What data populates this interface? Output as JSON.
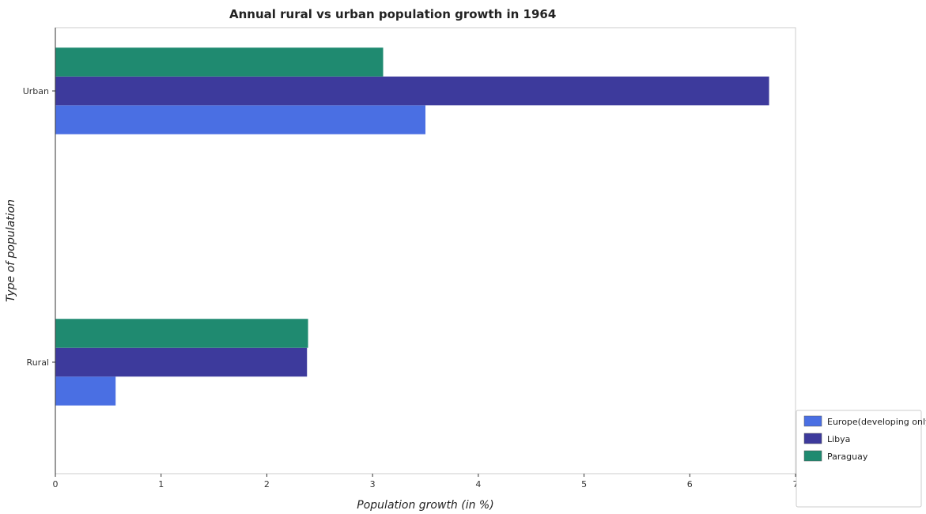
{
  "chart_data": {
    "type": "bar",
    "orientation": "horizontal",
    "title": "Annual rural vs urban population growth in 1964",
    "xlabel": "Population growth (in %)",
    "ylabel": "Type of population",
    "categories": [
      "Rural",
      "Urban"
    ],
    "series": [
      {
        "name": "Europe(developing only)",
        "color": "#4a6fe3",
        "values": [
          0.57,
          3.5
        ]
      },
      {
        "name": "Libya",
        "color": "#3d3a9c",
        "values": [
          2.38,
          6.75
        ]
      },
      {
        "name": "Paraguay",
        "color": "#1f8a70",
        "values": [
          2.39,
          3.1
        ]
      }
    ],
    "xlim": [
      0,
      7
    ],
    "xticks": [
      "0",
      "1",
      "2",
      "3",
      "4",
      "5",
      "6",
      "7"
    ],
    "grid": false,
    "legend_position": "bottom-right"
  }
}
